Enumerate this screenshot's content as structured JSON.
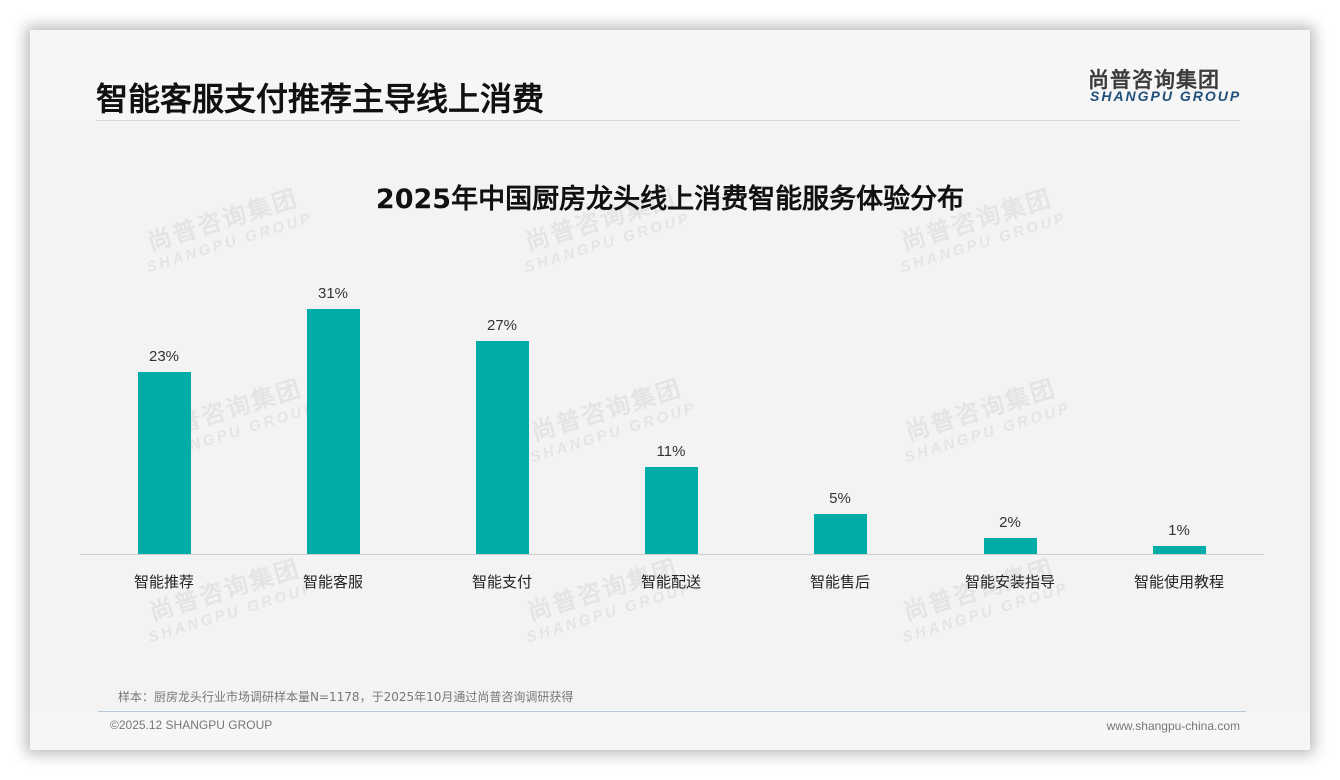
{
  "header": {
    "page_title": "智能客服支付推荐主导线上消费",
    "logo_cn": "尚普咨询集团",
    "logo_en": "SHANGPU GROUP"
  },
  "watermark": {
    "cn": "尚普咨询集团",
    "en": "SHANGPU GROUP"
  },
  "colors": {
    "bar": "#00ADA6",
    "title": "#111111",
    "logo_en": "#1F4F7A",
    "background": "#F3F3F3"
  },
  "chart_data": {
    "type": "bar",
    "title": "2025年中国厨房龙头线上消费智能服务体验分布",
    "categories": [
      "智能推荐",
      "智能客服",
      "智能支付",
      "智能配送",
      "智能售后",
      "智能安装指导",
      "智能使用教程"
    ],
    "values": [
      23,
      31,
      27,
      11,
      5,
      2,
      1
    ],
    "value_labels": [
      "23%",
      "31%",
      "27%",
      "11%",
      "5%",
      "2%",
      "1%"
    ],
    "unit": "%",
    "xlabel": "",
    "ylabel": "",
    "ylim": [
      0,
      31
    ],
    "grid": false,
    "legend": null
  },
  "footer": {
    "note": "样本：厨房龙头行业市场调研样本量N=1178，于2025年10月通过尚普咨询调研获得",
    "copyright": "©2025.12 SHANGPU GROUP",
    "website": "www.shangpu-china.com"
  }
}
